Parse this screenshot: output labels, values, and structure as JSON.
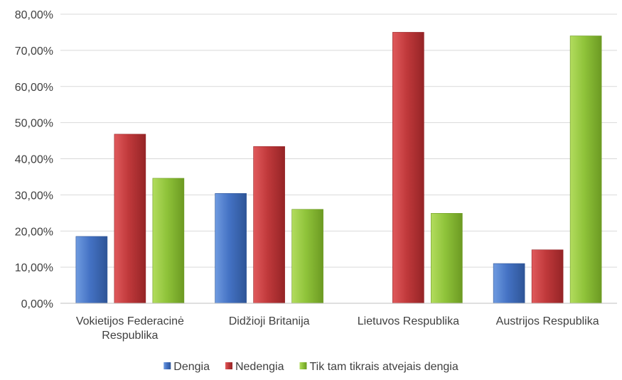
{
  "chart_data": {
    "type": "bar",
    "title": "",
    "xlabel": "",
    "ylabel": "",
    "ylim": [
      0,
      80
    ],
    "y_tick_step": 10,
    "y_tick_format": "percent_2dp_comma",
    "grid": true,
    "legend_position": "bottom",
    "categories": [
      [
        "Vokietijos Federacinė",
        "Respublika"
      ],
      [
        "Didžioji Britanija"
      ],
      [
        "Lietuvos Respublika"
      ],
      [
        "Austrijos Respublika"
      ]
    ],
    "series": [
      {
        "name": "Dengia",
        "values": [
          18.5,
          30.4,
          0,
          11.0
        ]
      },
      {
        "name": "Nedengia",
        "values": [
          46.8,
          43.4,
          75.0,
          14.8
        ]
      },
      {
        "name": "Tik tam tikrais atvejais dengia",
        "values": [
          34.6,
          26.0,
          24.9,
          74.0
        ]
      }
    ]
  },
  "colors": {
    "Dengia": {
      "base": "#4472c4",
      "light": "#6f9be0",
      "dark": "#2e5597"
    },
    "Nedengia": {
      "base": "#c0393b",
      "light": "#e05a5c",
      "dark": "#952426"
    },
    "Tik tam tikrais atvejais dengia": {
      "base": "#8fc33a",
      "light": "#b2dc5e",
      "dark": "#6c9a22"
    },
    "grid": "#d9d9d9",
    "axis": "#bfbfbf",
    "text": "#404040"
  }
}
